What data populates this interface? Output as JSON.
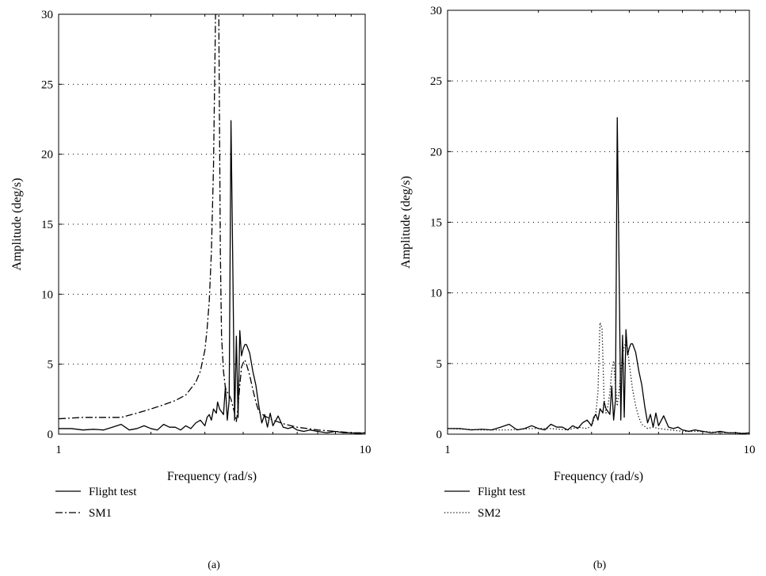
{
  "chart_data": [
    {
      "type": "line",
      "panel_label": "(a)",
      "xlabel": "Frequency (rad/s)",
      "ylabel": "Amplitude (deg/s)",
      "xscale": "log",
      "xlim": [
        1,
        10
      ],
      "ylim": [
        0,
        30
      ],
      "xticks": [
        1,
        10
      ],
      "xtick_labels": [
        "1",
        "10"
      ],
      "yticks": [
        0,
        5,
        10,
        15,
        20,
        25,
        30
      ],
      "ytick_labels": [
        "0",
        "5",
        "10",
        "15",
        "20",
        "25",
        "30"
      ],
      "grid": "horizontal dotted",
      "legend_position": "below",
      "series": [
        {
          "name": "Flight test",
          "style": "solid",
          "x": [
            1.0,
            1.1,
            1.2,
            1.3,
            1.4,
            1.5,
            1.6,
            1.7,
            1.8,
            1.9,
            2.0,
            2.1,
            2.2,
            2.3,
            2.4,
            2.5,
            2.6,
            2.7,
            2.8,
            2.9,
            3.0,
            3.05,
            3.1,
            3.15,
            3.2,
            3.27,
            3.3,
            3.35,
            3.4,
            3.45,
            3.5,
            3.55,
            3.6,
            3.65,
            3.7,
            3.75,
            3.8,
            3.85,
            3.9,
            3.95,
            4.0,
            4.05,
            4.1,
            4.2,
            4.3,
            4.4,
            4.5,
            4.6,
            4.7,
            4.8,
            4.9,
            5.0,
            5.2,
            5.4,
            5.6,
            5.8,
            6.0,
            6.3,
            6.6,
            7.0,
            7.5,
            8.0,
            8.5,
            9.0,
            9.5,
            10.0
          ],
          "y": [
            0.4,
            0.4,
            0.3,
            0.35,
            0.3,
            0.5,
            0.7,
            0.3,
            0.4,
            0.6,
            0.4,
            0.3,
            0.7,
            0.5,
            0.5,
            0.3,
            0.6,
            0.4,
            0.8,
            1.0,
            0.6,
            1.2,
            1.4,
            1.0,
            1.8,
            1.5,
            2.3,
            1.8,
            1.6,
            1.4,
            3.4,
            1.0,
            2.4,
            22.4,
            12.0,
            1.0,
            7.0,
            1.2,
            7.4,
            5.6,
            6.1,
            6.4,
            6.4,
            5.8,
            4.5,
            3.5,
            2.0,
            0.8,
            1.4,
            0.5,
            1.5,
            0.6,
            1.3,
            0.5,
            0.4,
            0.5,
            0.3,
            0.2,
            0.3,
            0.2,
            0.1,
            0.2,
            0.1,
            0.1,
            0.05,
            0.1
          ]
        },
        {
          "name": "SM1",
          "style": "dash-dot",
          "x": [
            1.0,
            1.2,
            1.4,
            1.6,
            1.8,
            2.0,
            2.2,
            2.4,
            2.6,
            2.8,
            2.9,
            3.0,
            3.05,
            3.1,
            3.15,
            3.2,
            3.25,
            3.3,
            3.33,
            3.37,
            3.4,
            3.45,
            3.5,
            3.55,
            3.6,
            3.65,
            3.7,
            3.75,
            3.8,
            3.85,
            3.9,
            3.95,
            4.0,
            4.05,
            4.1,
            4.2,
            4.3,
            4.4,
            4.5,
            4.7,
            5.0,
            5.5,
            6.0,
            6.5,
            7.0,
            8.0,
            9.0,
            10.0
          ],
          "y": [
            1.1,
            1.2,
            1.2,
            1.2,
            1.5,
            1.8,
            2.1,
            2.4,
            2.8,
            3.7,
            4.5,
            6.0,
            7.5,
            9.5,
            13.0,
            19.0,
            30,
            30,
            30,
            13.0,
            7.0,
            4.5,
            3.3,
            3.0,
            2.8,
            2.5,
            2.0,
            1.5,
            0.9,
            2.0,
            3.5,
            4.8,
            5.1,
            5.3,
            5.0,
            4.2,
            3.2,
            2.3,
            1.6,
            1.3,
            1.0,
            0.7,
            0.5,
            0.4,
            0.3,
            0.2,
            0.1,
            0.1
          ]
        }
      ]
    },
    {
      "type": "line",
      "panel_label": "(b)",
      "xlabel": "Frequency (rad/s)",
      "ylabel": "Amplitude (deg/s)",
      "xscale": "log",
      "xlim": [
        1,
        10
      ],
      "ylim": [
        0,
        30
      ],
      "xticks": [
        1,
        10
      ],
      "xtick_labels": [
        "1",
        "10"
      ],
      "yticks": [
        0,
        5,
        10,
        15,
        20,
        25,
        30
      ],
      "ytick_labels": [
        "0",
        "5",
        "10",
        "15",
        "20",
        "25",
        "30"
      ],
      "grid": "horizontal dotted",
      "legend_position": "below",
      "series": [
        {
          "name": "Flight test",
          "style": "solid",
          "x": [
            1.0,
            1.1,
            1.2,
            1.3,
            1.4,
            1.5,
            1.6,
            1.7,
            1.8,
            1.9,
            2.0,
            2.1,
            2.2,
            2.3,
            2.4,
            2.5,
            2.6,
            2.7,
            2.8,
            2.9,
            3.0,
            3.05,
            3.1,
            3.15,
            3.2,
            3.27,
            3.3,
            3.35,
            3.4,
            3.45,
            3.5,
            3.55,
            3.6,
            3.65,
            3.7,
            3.75,
            3.8,
            3.85,
            3.9,
            3.95,
            4.0,
            4.05,
            4.1,
            4.2,
            4.3,
            4.4,
            4.5,
            4.6,
            4.7,
            4.8,
            4.9,
            5.0,
            5.2,
            5.4,
            5.6,
            5.8,
            6.0,
            6.3,
            6.6,
            7.0,
            7.5,
            8.0,
            8.5,
            9.0,
            9.5,
            10.0
          ],
          "y": [
            0.4,
            0.4,
            0.3,
            0.35,
            0.3,
            0.5,
            0.7,
            0.3,
            0.4,
            0.6,
            0.4,
            0.3,
            0.7,
            0.5,
            0.5,
            0.3,
            0.6,
            0.4,
            0.8,
            1.0,
            0.6,
            1.2,
            1.4,
            1.0,
            1.8,
            1.5,
            2.3,
            1.8,
            1.6,
            1.4,
            3.4,
            1.0,
            2.4,
            22.4,
            12.0,
            1.0,
            7.0,
            1.2,
            7.4,
            5.6,
            6.1,
            6.4,
            6.4,
            5.8,
            4.5,
            3.5,
            2.0,
            0.8,
            1.4,
            0.5,
            1.5,
            0.6,
            1.3,
            0.5,
            0.4,
            0.5,
            0.3,
            0.2,
            0.3,
            0.2,
            0.1,
            0.2,
            0.1,
            0.1,
            0.05,
            0.1
          ]
        },
        {
          "name": "SM2",
          "style": "dotted",
          "x": [
            1.0,
            1.3,
            1.6,
            1.9,
            2.2,
            2.5,
            2.7,
            2.9,
            3.0,
            3.05,
            3.1,
            3.15,
            3.2,
            3.25,
            3.3,
            3.35,
            3.4,
            3.45,
            3.5,
            3.55,
            3.6,
            3.65,
            3.7,
            3.75,
            3.8,
            3.85,
            3.9,
            3.95,
            4.0,
            4.1,
            4.2,
            4.3,
            4.4,
            4.6,
            4.8,
            5.0,
            5.5,
            6.0,
            7.0,
            8.0,
            9.0,
            10.0
          ],
          "y": [
            0.4,
            0.3,
            0.3,
            0.4,
            0.4,
            0.3,
            0.5,
            0.4,
            0.6,
            1.0,
            1.5,
            3.0,
            7.9,
            7.5,
            2.5,
            1.5,
            2.0,
            3.0,
            4.5,
            5.2,
            3.5,
            2.0,
            3.0,
            4.5,
            5.6,
            6.2,
            6.5,
            6.0,
            5.0,
            3.2,
            2.0,
            1.2,
            0.7,
            0.4,
            0.5,
            0.4,
            0.3,
            0.2,
            0.2,
            0.1,
            0.1,
            0.05
          ]
        }
      ]
    }
  ]
}
